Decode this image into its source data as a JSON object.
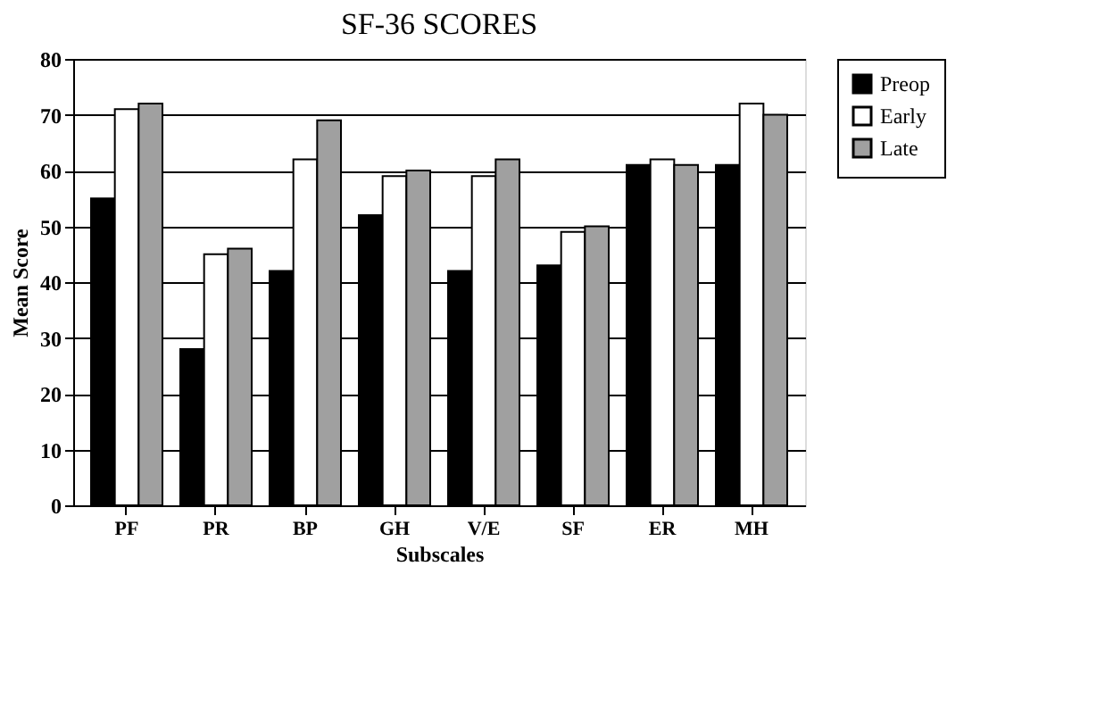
{
  "chart_data": {
    "type": "bar",
    "title": "SF-36 SCORES",
    "xlabel": "Subscales",
    "ylabel": "Mean Score",
    "categories": [
      "PF",
      "PR",
      "BP",
      "GH",
      "V/E",
      "SF",
      "ER",
      "MH"
    ],
    "series": [
      {
        "name": "Preop",
        "color": "#000000",
        "values": [
          55,
          28,
          42,
          52,
          42,
          43,
          61,
          61
        ]
      },
      {
        "name": "Early",
        "color": "#ffffff",
        "values": [
          71,
          45,
          62,
          59,
          59,
          49,
          62,
          72
        ]
      },
      {
        "name": "Late",
        "color": "#a0a0a0",
        "values": [
          72,
          46,
          69,
          60,
          62,
          50,
          61,
          70
        ]
      }
    ],
    "ylim": [
      0,
      80
    ],
    "yticks": [
      0,
      10,
      20,
      30,
      40,
      50,
      60,
      70,
      80
    ],
    "grid": "y",
    "legend": "top right"
  }
}
